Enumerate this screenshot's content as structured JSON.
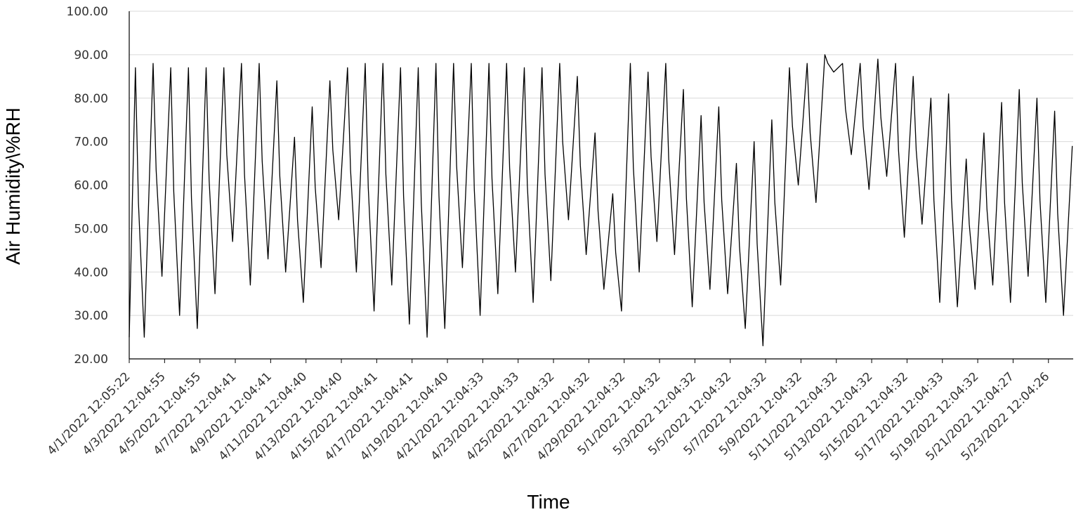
{
  "chart_data": {
    "type": "line",
    "title": "",
    "xlabel": "Time",
    "ylabel": "Air Humidity\\%RH",
    "ylim": [
      20,
      100
    ],
    "yticks": [
      "20.00",
      "30.00",
      "40.00",
      "50.00",
      "60.00",
      "70.00",
      "80.00",
      "90.00",
      "100.00"
    ],
    "grid": true,
    "legend": "none",
    "line_color": "#000000",
    "x_tick_labels": [
      "4/1/2022 12:05:22",
      "4/3/2022 12:04:55",
      "4/5/2022 12:04:55",
      "4/7/2022 12:04:41",
      "4/9/2022 12:04:41",
      "4/11/2022 12:04:40",
      "4/13/2022 12:04:40",
      "4/15/2022 12:04:41",
      "4/17/2022 12:04:41",
      "4/19/2022 12:04:40",
      "4/21/2022 12:04:33",
      "4/23/2022 12:04:33",
      "4/25/2022 12:04:32",
      "4/27/2022 12:04:32",
      "4/29/2022 12:04:32",
      "5/1/2022 12:04:32",
      "5/3/2022 12:04:32",
      "5/5/2022 12:04:32",
      "5/7/2022 12:04:32",
      "5/9/2022 12:04:32",
      "5/11/2022 12:04:32",
      "5/13/2022 12:04:32",
      "5/15/2022 12:04:32",
      "5/17/2022 12:04:33",
      "5/19/2022 12:04:32",
      "5/21/2022 12:04:27",
      "5/23/2022 12:04:26"
    ],
    "x_range_days": [
      0,
      53.4
    ],
    "daily_extremes": [
      {
        "day": 1,
        "min": 25,
        "max": 87
      },
      {
        "day": 2,
        "min": 39,
        "max": 88
      },
      {
        "day": 3,
        "min": 30,
        "max": 87
      },
      {
        "day": 4,
        "min": 27,
        "max": 87
      },
      {
        "day": 5,
        "min": 35,
        "max": 87
      },
      {
        "day": 6,
        "min": 47,
        "max": 87
      },
      {
        "day": 7,
        "min": 37,
        "max": 88
      },
      {
        "day": 8,
        "min": 43,
        "max": 88
      },
      {
        "day": 9,
        "min": 40,
        "max": 84
      },
      {
        "day": 10,
        "min": 33,
        "max": 71
      },
      {
        "day": 11,
        "min": 41,
        "max": 78
      },
      {
        "day": 12,
        "min": 52,
        "max": 84
      },
      {
        "day": 13,
        "min": 40,
        "max": 87
      },
      {
        "day": 14,
        "min": 31,
        "max": 88
      },
      {
        "day": 15,
        "min": 37,
        "max": 88
      },
      {
        "day": 16,
        "min": 28,
        "max": 87
      },
      {
        "day": 17,
        "min": 25,
        "max": 87
      },
      {
        "day": 18,
        "min": 27,
        "max": 88
      },
      {
        "day": 19,
        "min": 41,
        "max": 88
      },
      {
        "day": 20,
        "min": 30,
        "max": 88
      },
      {
        "day": 21,
        "min": 35,
        "max": 88
      },
      {
        "day": 22,
        "min": 40,
        "max": 88
      },
      {
        "day": 23,
        "min": 33,
        "max": 87
      },
      {
        "day": 24,
        "min": 38,
        "max": 87
      },
      {
        "day": 25,
        "min": 52,
        "max": 88
      },
      {
        "day": 26,
        "min": 44,
        "max": 85
      },
      {
        "day": 27,
        "min": 36,
        "max": 72
      },
      {
        "day": 28,
        "min": 31,
        "max": 58
      },
      {
        "day": 29,
        "min": 40,
        "max": 88
      },
      {
        "day": 30,
        "min": 47,
        "max": 86
      },
      {
        "day": 31,
        "min": 44,
        "max": 88
      },
      {
        "day": 32,
        "min": 32,
        "max": 82
      },
      {
        "day": 33,
        "min": 36,
        "max": 76
      },
      {
        "day": 34,
        "min": 35,
        "max": 78
      },
      {
        "day": 35,
        "min": 27,
        "max": 65
      },
      {
        "day": 36,
        "min": 23,
        "max": 70
      },
      {
        "day": 37,
        "min": 37,
        "max": 75
      },
      {
        "day": 38,
        "min": 60,
        "max": 87
      },
      {
        "day": 39,
        "min": 56,
        "max": 88
      },
      {
        "day": 40,
        "min": 86,
        "max": 90
      },
      {
        "day": 41,
        "min": 67,
        "max": 88
      },
      {
        "day": 42,
        "min": 59,
        "max": 88
      },
      {
        "day": 43,
        "min": 62,
        "max": 89
      },
      {
        "day": 44,
        "min": 48,
        "max": 88
      },
      {
        "day": 45,
        "min": 51,
        "max": 85
      },
      {
        "day": 46,
        "min": 33,
        "max": 80
      },
      {
        "day": 47,
        "min": 32,
        "max": 81
      },
      {
        "day": 48,
        "min": 36,
        "max": 66
      },
      {
        "day": 49,
        "min": 37,
        "max": 72
      },
      {
        "day": 50,
        "min": 33,
        "max": 79
      },
      {
        "day": 51,
        "min": 39,
        "max": 82
      },
      {
        "day": 52,
        "min": 33,
        "max": 80
      },
      {
        "day": 53,
        "min": 30,
        "max": 77
      },
      {
        "day": 54,
        "min": 36,
        "max": 69
      }
    ]
  }
}
